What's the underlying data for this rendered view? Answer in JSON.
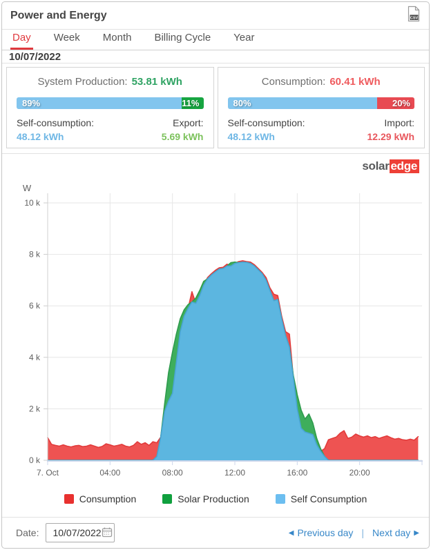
{
  "header": {
    "title": "Power and Energy"
  },
  "tabs": [
    {
      "label": "Day",
      "active": true
    },
    {
      "label": "Week",
      "active": false
    },
    {
      "label": "Month",
      "active": false
    },
    {
      "label": "Billing Cycle",
      "active": false
    },
    {
      "label": "Year",
      "active": false
    }
  ],
  "date_heading": "10/07/2022",
  "production_card": {
    "title": "System Production:",
    "value": "53.81 kWh",
    "bar_left_pct": "89%",
    "bar_right_pct": "11%",
    "bar_left_width": 89,
    "self_label": "Self-consumption:",
    "self_value": "48.12 kWh",
    "right_label": "Export:",
    "right_value": "5.69 kWh"
  },
  "consumption_card": {
    "title": "Consumption:",
    "value": "60.41 kWh",
    "bar_left_pct": "80%",
    "bar_right_pct": "20%",
    "bar_left_width": 80,
    "self_label": "Self-consumption:",
    "self_value": "48.12 kWh",
    "right_label": "Import:",
    "right_value": "12.29 kWh"
  },
  "logo": {
    "part1": "solar",
    "part2": "edge"
  },
  "chart_data": {
    "type": "area",
    "title": "",
    "unit_label": "W",
    "ylim": [
      0,
      10000
    ],
    "grid": true,
    "start_hour": 0,
    "step_hours": 0.25,
    "yticks": [
      {
        "value": 0,
        "label": "0 k"
      },
      {
        "value": 2000,
        "label": "2 k"
      },
      {
        "value": 4000,
        "label": "4 k"
      },
      {
        "value": 6000,
        "label": "6 k"
      },
      {
        "value": 8000,
        "label": "8 k"
      },
      {
        "value": 10000,
        "label": "10 k"
      }
    ],
    "xticks": [
      {
        "hour": 0,
        "label": "7. Oct"
      },
      {
        "hour": 4,
        "label": "04:00"
      },
      {
        "hour": 8,
        "label": "08:00"
      },
      {
        "hour": 12,
        "label": "12:00"
      },
      {
        "hour": 16,
        "label": "16:00"
      },
      {
        "hour": 20,
        "label": "20:00"
      }
    ],
    "series": [
      {
        "name": "Consumption",
        "fill": "#ee5352",
        "line": "#e23b3b",
        "values": [
          880,
          620,
          580,
          550,
          600,
          550,
          520,
          560,
          580,
          530,
          550,
          600,
          550,
          500,
          540,
          640,
          600,
          550,
          580,
          620,
          550,
          520,
          580,
          720,
          620,
          680,
          580,
          720,
          680,
          900,
          1900,
          2300,
          2600,
          3800,
          5000,
          5600,
          5900,
          6550,
          6100,
          6400,
          6800,
          7100,
          7250,
          7380,
          7480,
          7500,
          7620,
          7550,
          7650,
          7720,
          7750,
          7720,
          7700,
          7600,
          7450,
          7300,
          7100,
          6700,
          6450,
          6400,
          5600,
          5000,
          4900,
          3200,
          2000,
          1250,
          1100,
          1050,
          1000,
          600,
          350,
          450,
          800,
          850,
          900,
          1050,
          1150,
          850,
          900,
          1020,
          950,
          900,
          950,
          880,
          920,
          850,
          900,
          950,
          880,
          820,
          850,
          800,
          780,
          820,
          780,
          920
        ]
      },
      {
        "name": "Solar Production",
        "fill": "#3eae5c",
        "line": "#2f9b4d",
        "values": [
          0,
          0,
          0,
          0,
          0,
          0,
          0,
          0,
          0,
          0,
          0,
          0,
          0,
          0,
          0,
          0,
          0,
          0,
          0,
          0,
          0,
          0,
          0,
          0,
          0,
          0,
          0,
          0,
          150,
          900,
          2200,
          3400,
          4200,
          4900,
          5500,
          5850,
          6050,
          6150,
          6300,
          6600,
          6950,
          7050,
          7200,
          7320,
          7430,
          7450,
          7550,
          7680,
          7700,
          7680,
          7700,
          7690,
          7650,
          7550,
          7400,
          7250,
          7000,
          6600,
          6200,
          6250,
          5500,
          4850,
          4400,
          3300,
          2550,
          1950,
          1600,
          1800,
          1450,
          850,
          450,
          150,
          0,
          0,
          0,
          0,
          0,
          0,
          0,
          0,
          0,
          0,
          0,
          0,
          0,
          0,
          0,
          0,
          0,
          0,
          0,
          0,
          0,
          0,
          0,
          0
        ]
      },
      {
        "name": "Self Consumption",
        "fill": "#5cb6e0",
        "line": "#49a5d3",
        "values": [
          0,
          0,
          0,
          0,
          0,
          0,
          0,
          0,
          0,
          0,
          0,
          0,
          0,
          0,
          0,
          0,
          0,
          0,
          0,
          0,
          0,
          0,
          0,
          0,
          0,
          0,
          0,
          0,
          150,
          900,
          1900,
          2300,
          2600,
          3800,
          5000,
          5600,
          5900,
          6150,
          6100,
          6400,
          6800,
          7050,
          7200,
          7320,
          7430,
          7450,
          7550,
          7550,
          7650,
          7680,
          7700,
          7690,
          7650,
          7550,
          7400,
          7250,
          7000,
          6600,
          6200,
          6250,
          5500,
          4850,
          4400,
          3200,
          2000,
          1250,
          1100,
          1050,
          1000,
          600,
          350,
          150,
          0,
          0,
          0,
          0,
          0,
          0,
          0,
          0,
          0,
          0,
          0,
          0,
          0,
          0,
          0,
          0,
          0,
          0,
          0,
          0,
          0,
          0,
          0,
          0
        ]
      }
    ],
    "legend_position": "bottom"
  },
  "legend": [
    {
      "label": "Consumption",
      "color": "#e8312f"
    },
    {
      "label": "Solar Production",
      "color": "#10a03e"
    },
    {
      "label": "Self Consumption",
      "color": "#6cbef0"
    }
  ],
  "footer": {
    "date_label": "Date:",
    "date_value": "10/07/2022",
    "prev_label": "Previous day",
    "separator": "|",
    "next_label": "Next day"
  },
  "colors": {
    "tab_active": "#e0393e",
    "bar_blue": "#82c5ee",
    "bar_green": "#17a541",
    "bar_red": "#e84a52",
    "link_blue": "#3787c8",
    "axis_line": "#ccd6eb",
    "grid_line": "#e6e6e6"
  }
}
